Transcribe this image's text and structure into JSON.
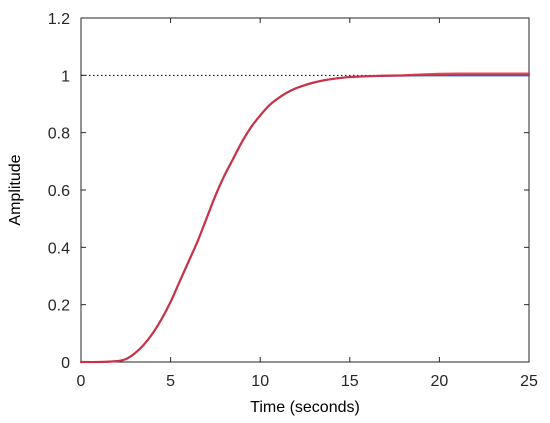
{
  "chart_data": {
    "type": "line",
    "title": "",
    "xlabel": "Time (seconds)",
    "ylabel": "Amplitude",
    "xlim": [
      0,
      25
    ],
    "ylim": [
      0,
      1.2
    ],
    "xticks": [
      0,
      5,
      10,
      15,
      20,
      25
    ],
    "yticks": [
      0,
      0.2,
      0.4,
      0.6,
      0.8,
      1,
      1.2
    ],
    "xtick_labels": [
      "0",
      "5",
      "10",
      "15",
      "20",
      "25"
    ],
    "ytick_labels": [
      "0",
      "0.2",
      "0.4",
      "0.6",
      "0.8",
      "1",
      "1.2"
    ],
    "grid": false,
    "reference_line": {
      "y": 1,
      "style": "dotted",
      "color": "#000000"
    },
    "series": [
      {
        "color": "#2a5fd6",
        "x": [
          0,
          1,
          2,
          2.5,
          3,
          3.5,
          4,
          4.5,
          5,
          5.5,
          6,
          6.5,
          7,
          7.5,
          8,
          8.5,
          9,
          9.5,
          10,
          10.5,
          11,
          11.5,
          12,
          12.5,
          13,
          13.5,
          14,
          14.5,
          15,
          16,
          17,
          18,
          19,
          20,
          21,
          22,
          23,
          24,
          25
        ],
        "values": [
          0,
          0,
          0.003,
          0.01,
          0.03,
          0.06,
          0.1,
          0.15,
          0.21,
          0.28,
          0.35,
          0.42,
          0.5,
          0.58,
          0.65,
          0.71,
          0.77,
          0.82,
          0.86,
          0.895,
          0.92,
          0.94,
          0.955,
          0.966,
          0.975,
          0.982,
          0.987,
          0.991,
          0.994,
          0.997,
          0.998,
          0.999,
          1.0,
          1.0,
          1.0,
          1.0,
          1.0,
          1.0,
          1.0
        ]
      },
      {
        "color": "#e8282b",
        "x": [
          0,
          1,
          2,
          2.5,
          3,
          3.5,
          4,
          4.5,
          5,
          5.5,
          6,
          6.5,
          7,
          7.5,
          8,
          8.5,
          9,
          9.5,
          10,
          10.5,
          11,
          11.5,
          12,
          12.5,
          13,
          13.5,
          14,
          14.5,
          15,
          16,
          17,
          18,
          19,
          20,
          21,
          22,
          23,
          24,
          25
        ],
        "values": [
          0,
          0,
          0.003,
          0.01,
          0.03,
          0.06,
          0.1,
          0.15,
          0.21,
          0.28,
          0.35,
          0.42,
          0.5,
          0.58,
          0.65,
          0.71,
          0.77,
          0.82,
          0.86,
          0.895,
          0.92,
          0.94,
          0.955,
          0.966,
          0.975,
          0.982,
          0.987,
          0.991,
          0.994,
          0.997,
          0.999,
          1.0,
          1.003,
          1.005,
          1.006,
          1.006,
          1.006,
          1.006,
          1.006
        ]
      }
    ]
  }
}
